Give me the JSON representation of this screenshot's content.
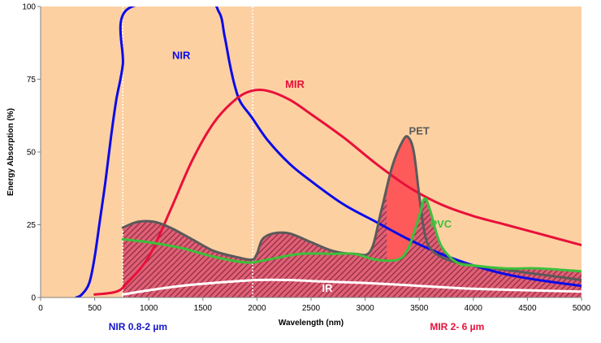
{
  "chart_data": {
    "type": "line",
    "title": "",
    "xlabel": "Wavelength (nm)",
    "ylabel": "Energy Absorption (%)",
    "xlim": [
      0,
      5000
    ],
    "ylim": [
      0,
      100
    ],
    "xticks": [
      0,
      500,
      1000,
      1500,
      2000,
      2500,
      3000,
      3500,
      4000,
      4500,
      5000
    ],
    "yticks": [
      0,
      25,
      50,
      75,
      100
    ],
    "grid": false,
    "legend": "none",
    "background_color": "#fdd0a2",
    "hatch_color": "#8c2b3a",
    "reference_lines_x": [
      760,
      1960
    ],
    "range_labels": [
      {
        "text": "NIR 0.8-2 µm",
        "color": "#1515c8",
        "x": 900
      },
      {
        "text": "MIR 2- 6 µm",
        "color": "#e8103a",
        "x": 3850
      }
    ],
    "series": [
      {
        "name": "NIR",
        "color": "#0b0be8",
        "label_at": [
          1300,
          82
        ],
        "x": [
          330,
          380,
          450,
          500,
          550,
          600,
          650,
          700,
          760,
          800,
          1500,
          1650,
          1700,
          1750,
          1800,
          1850,
          1950,
          2100,
          2300,
          2500,
          2800,
          3100,
          3400,
          3700,
          4000,
          4300,
          4600,
          5000
        ],
        "y": [
          0,
          1,
          5,
          14,
          27,
          40,
          55,
          68,
          80,
          99,
          102,
          98,
          90,
          80,
          72,
          67,
          62,
          54,
          46,
          40,
          32,
          26,
          20,
          15,
          11,
          8,
          6,
          4
        ]
      },
      {
        "name": "MIR",
        "color": "#e8103a",
        "label_at": [
          2350,
          72
        ],
        "x": [
          500,
          700,
          800,
          1000,
          1200,
          1400,
          1600,
          1800,
          1950,
          2100,
          2300,
          2500,
          2800,
          3100,
          3400,
          3700,
          4000,
          4300,
          4600,
          4800,
          5000
        ],
        "y": [
          1,
          2,
          5,
          14,
          30,
          47,
          60,
          68,
          71,
          71,
          68,
          63,
          55,
          46,
          38,
          32,
          28,
          25,
          22,
          20,
          18
        ]
      },
      {
        "name": "PET",
        "color": "#5a5a5a",
        "label_at": [
          3500,
          56
        ],
        "x": [
          760,
          900,
          1050,
          1200,
          1400,
          1600,
          1800,
          1950,
          2000,
          2050,
          2150,
          2300,
          2500,
          2700,
          2900,
          3050,
          3150,
          3250,
          3350,
          3400,
          3450,
          3500,
          3550,
          3600,
          3700,
          3850,
          4000,
          4200,
          4400,
          4600,
          4800,
          5000
        ],
        "y": [
          24,
          26,
          26,
          24,
          20,
          16,
          14,
          13,
          15,
          20,
          22,
          22,
          19,
          16,
          15,
          16,
          30,
          45,
          54,
          55,
          50,
          35,
          22,
          17,
          14,
          12,
          11,
          10,
          9,
          8,
          7,
          6
        ]
      },
      {
        "name": "PVC",
        "color": "#3cc03c",
        "label_at": [
          3700,
          24
        ],
        "x": [
          760,
          1000,
          1300,
          1600,
          1900,
          2100,
          2400,
          2700,
          2900,
          3100,
          3300,
          3400,
          3500,
          3550,
          3600,
          3700,
          3850,
          4000,
          4300,
          4600,
          5000
        ],
        "y": [
          20,
          19,
          17,
          14,
          12,
          13,
          15,
          15,
          15,
          13,
          13,
          17,
          28,
          34,
          30,
          18,
          12,
          11,
          10,
          10,
          9
        ]
      },
      {
        "name": "IR",
        "color": "#ffffff",
        "label_at": [
          2650,
          2
        ],
        "x": [
          760,
          1000,
          1300,
          1600,
          2000,
          2300,
          2600,
          3000,
          3500,
          4000,
          4500,
          5000
        ],
        "y": [
          1,
          2.5,
          4,
          5,
          6,
          6,
          5.5,
          5,
          4,
          3,
          2.5,
          2
        ]
      }
    ]
  }
}
